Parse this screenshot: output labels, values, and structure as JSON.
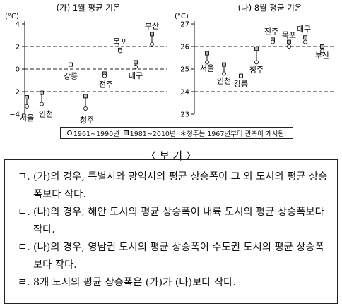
{
  "chart_data": [
    {
      "type": "scatter",
      "title": "(가) 1월 평균 기온",
      "ylabel": "(°C)",
      "ylim": [
        -4,
        4
      ],
      "yticks": [
        "4",
        "2",
        "0",
        "−2",
        "−4"
      ],
      "grid_dashed_at": [
        2,
        0,
        -2
      ],
      "categories": [
        "서울",
        "인천",
        "강릉",
        "청주",
        "전주",
        "목포",
        "대구",
        "부산"
      ],
      "series": [
        {
          "name": "1961~1990년",
          "values": [
            -3.3,
            -3.1,
            0.4,
            -3.5,
            -0.6,
            1.6,
            0.2,
            2.2
          ]
        },
        {
          "name": "1981~2010년",
          "values": [
            -2.5,
            -2.1,
            0.4,
            -2.4,
            -0.4,
            1.7,
            0.6,
            3.1
          ]
        }
      ]
    },
    {
      "type": "scatter",
      "title": "(나) 8월 평균 기온",
      "ylabel": "(°C)",
      "ylim": [
        23,
        27
      ],
      "yticks": [
        "27",
        "26",
        "25",
        "24",
        "23"
      ],
      "grid_dashed_at": [
        26,
        24
      ],
      "categories": [
        "서울",
        "인천",
        "강릉",
        "청주",
        "전주",
        "목포",
        "대구",
        "부산"
      ],
      "series": [
        {
          "name": "1961~1990년",
          "values": [
            25.3,
            24.8,
            24.7,
            25.3,
            26.2,
            26.0,
            26.2,
            25.8
          ]
        },
        {
          "name": "1981~2010년",
          "values": [
            25.7,
            25.2,
            24.7,
            25.9,
            26.3,
            26.2,
            26.4,
            26.0
          ]
        }
      ]
    }
  ],
  "legend": {
    "item1": "1961~1990년",
    "item2": "1981~2010년",
    "note": "＊청주는 1967년부터 관측이 개시됨."
  },
  "box": {
    "title": "〈 보 기 〉",
    "items": [
      {
        "label": "ㄱ.",
        "text": "(가)의 경우, 특별시와 광역시의 평균 상승폭이 그 외 도시의 평균 상승폭보다 작다."
      },
      {
        "label": "ㄴ.",
        "text": "(나)의 경우, 해안 도시의 평균 상승폭이 내륙 도시의 평균 상승폭보다 작다."
      },
      {
        "label": "ㄷ.",
        "text": "(나)의 경우, 영남권 도시의 평균 상승폭이 수도권 도시의 평균 상승폭보다 작다."
      },
      {
        "label": "ㄹ.",
        "text": "8개 도시의 평균 상승폭은 (가)가 (나)보다 작다."
      }
    ]
  }
}
